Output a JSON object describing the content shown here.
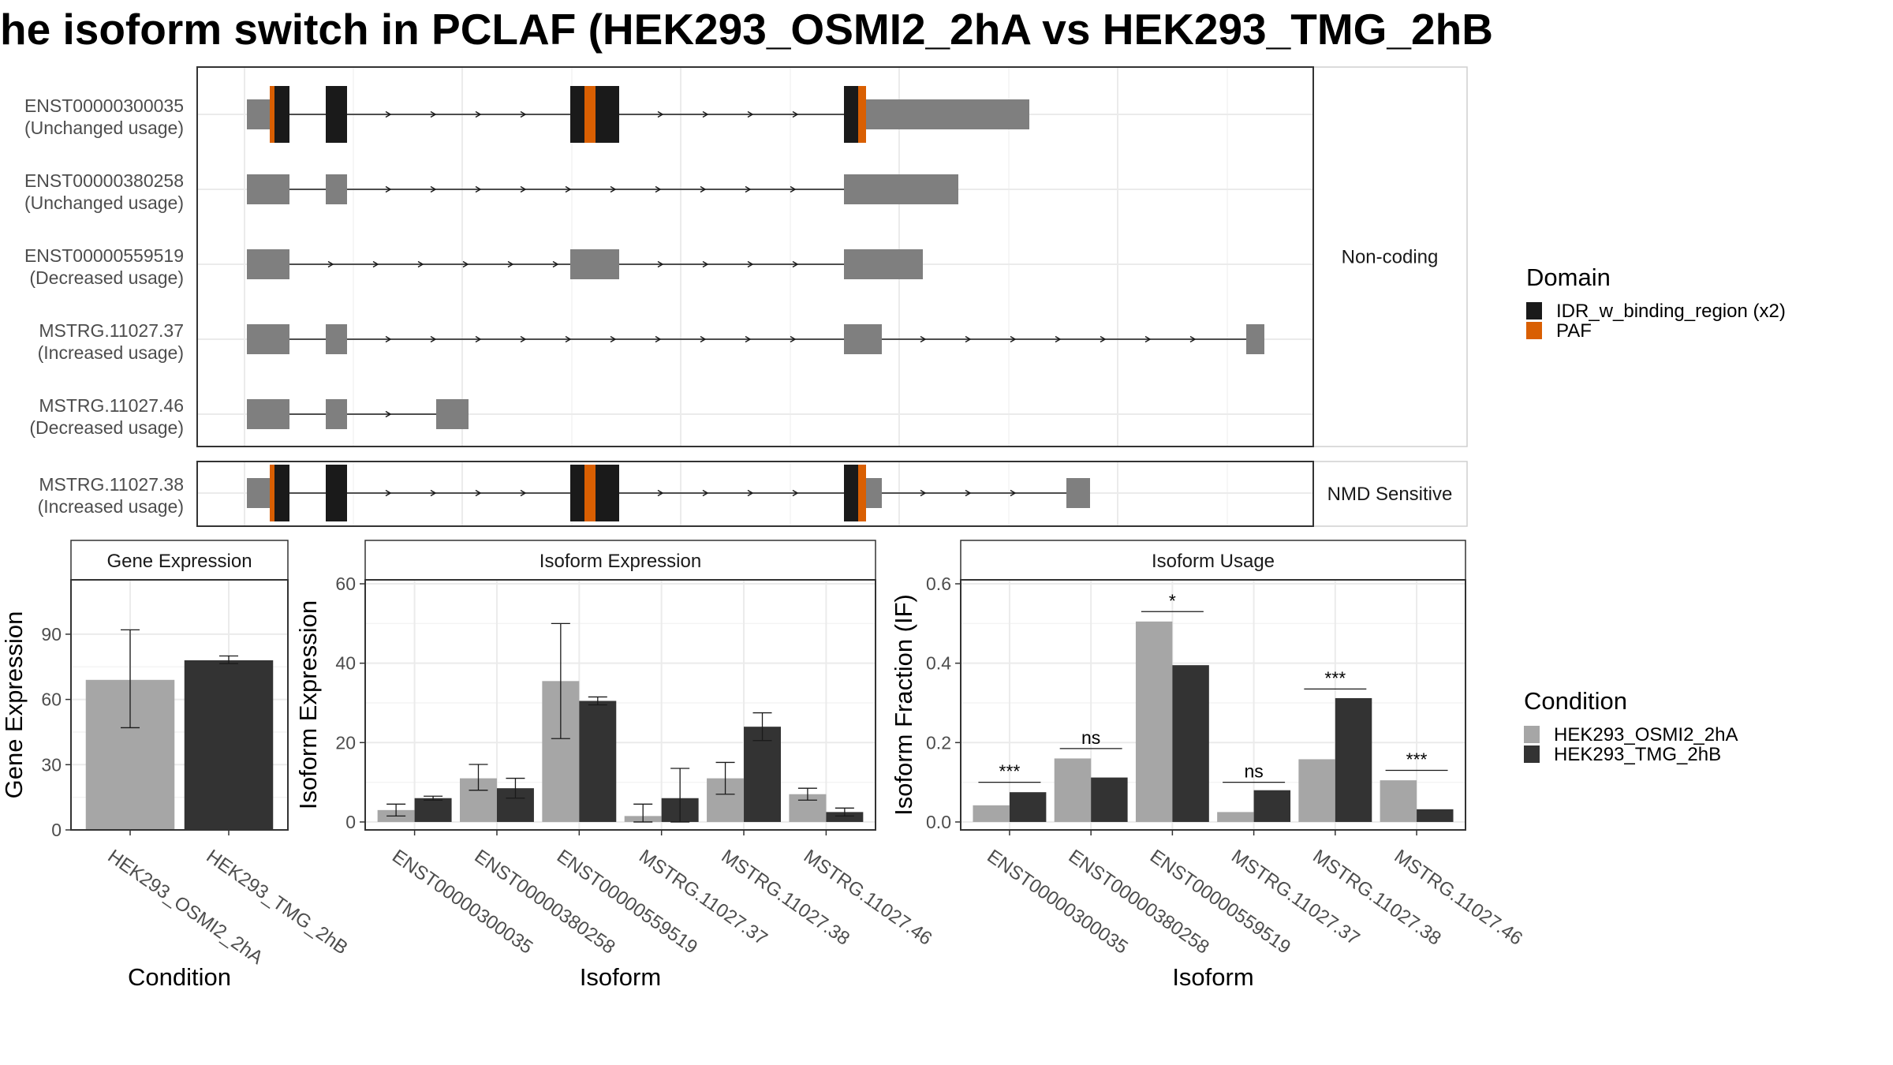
{
  "title": "he isoform switch in PCLAF (HEK293_OSMI2_2hA vs HEK293_TMG_2hB",
  "colors": {
    "exon": "#7f7f7f",
    "idr": "#1a1a1a",
    "paf": "#d95f02",
    "cond_a": "#a6a6a6",
    "cond_b": "#333333",
    "grid": "#ebebeb",
    "strip": "#f2f2f2"
  },
  "structure": {
    "facets": [
      "Non-coding",
      "NMD Sensitive"
    ],
    "transcripts": [
      {
        "id": "ENST00000300035",
        "usage": "(Unchanged usage)",
        "facet": 0
      },
      {
        "id": "ENST00000380258",
        "usage": "(Unchanged usage)",
        "facet": 0
      },
      {
        "id": "ENST00000559519",
        "usage": "(Decreased usage)",
        "facet": 0
      },
      {
        "id": "MSTRG.11027.37",
        "usage": "(Increased usage)",
        "facet": 0
      },
      {
        "id": "MSTRG.11027.46",
        "usage": "(Decreased usage)",
        "facet": 0
      },
      {
        "id": "MSTRG.11027.38",
        "usage": "(Increased usage)",
        "facet": 1
      }
    ]
  },
  "legend": {
    "domain_title": "Domain",
    "domain_items": [
      {
        "label": "IDR_w_binding_region (x2)",
        "color": "#1a1a1a"
      },
      {
        "label": "PAF",
        "color": "#d95f02"
      }
    ],
    "condition_title": "Condition",
    "condition_items": [
      {
        "label": "HEK293_OSMI2_2hA",
        "color": "#a6a6a6"
      },
      {
        "label": "HEK293_TMG_2hB",
        "color": "#333333"
      }
    ]
  },
  "chart_data": [
    {
      "type": "bar",
      "title": "Gene Expression",
      "xlabel": "Condition",
      "ylabel": "Gene Expression",
      "ylim": [
        0,
        115
      ],
      "yticks": [
        0,
        30,
        60,
        90
      ],
      "categories": [
        "HEK293_OSMI2_2hA",
        "HEK293_TMG_2hB"
      ],
      "values": [
        69,
        78
      ],
      "errors": [
        [
          47,
          92
        ],
        [
          76.5,
          80
        ]
      ]
    },
    {
      "type": "bar",
      "title": "Isoform Expression",
      "xlabel": "Isoform",
      "ylabel": "Isoform Expression",
      "ylim": [
        -2,
        61
      ],
      "yticks": [
        0,
        20,
        40,
        60
      ],
      "categories": [
        "ENST00000300035",
        "ENST00000380258",
        "ENST00000559519",
        "MSTRG.11027.37",
        "MSTRG.11027.38",
        "MSTRG.11027.46"
      ],
      "series": [
        {
          "name": "HEK293_OSMI2_2hA",
          "values": [
            3,
            11,
            35.5,
            1.5,
            11,
            7
          ],
          "errors": [
            [
              1.5,
              4.5
            ],
            [
              8,
              14.5
            ],
            [
              21,
              50
            ],
            [
              0,
              4.5
            ],
            [
              7,
              15
            ],
            [
              5.5,
              8.5
            ]
          ]
        },
        {
          "name": "HEK293_TMG_2hB",
          "values": [
            6,
            8.5,
            30.5,
            6,
            24,
            2.5
          ],
          "errors": [
            [
              5.5,
              6.5
            ],
            [
              6,
              11
            ],
            [
              29.5,
              31.5
            ],
            [
              0,
              13.5
            ],
            [
              20.5,
              27.5
            ],
            [
              1.5,
              3.5
            ]
          ]
        }
      ]
    },
    {
      "type": "bar",
      "title": "Isoform Usage",
      "xlabel": "Isoform",
      "ylabel": "Isoform Fraction (IF)",
      "ylim": [
        -0.02,
        0.61
      ],
      "yticks": [
        0.0,
        0.2,
        0.4,
        0.6
      ],
      "ytick_labels": [
        "0.0",
        "0.2",
        "0.4",
        "0.6"
      ],
      "categories": [
        "ENST00000300035",
        "ENST00000380258",
        "ENST00000559519",
        "MSTRG.11027.37",
        "MSTRG.11027.38",
        "MSTRG.11027.46"
      ],
      "series": [
        {
          "name": "HEK293_OSMI2_2hA",
          "values": [
            0.042,
            0.16,
            0.505,
            0.025,
            0.158,
            0.105
          ]
        },
        {
          "name": "HEK293_TMG_2hB",
          "values": [
            0.075,
            0.112,
            0.395,
            0.08,
            0.312,
            0.032
          ]
        }
      ],
      "significance": [
        "***",
        "ns",
        "*",
        "ns",
        "***",
        "***"
      ],
      "sig_y": [
        0.1,
        0.185,
        0.53,
        0.1,
        0.335,
        0.13
      ]
    }
  ]
}
